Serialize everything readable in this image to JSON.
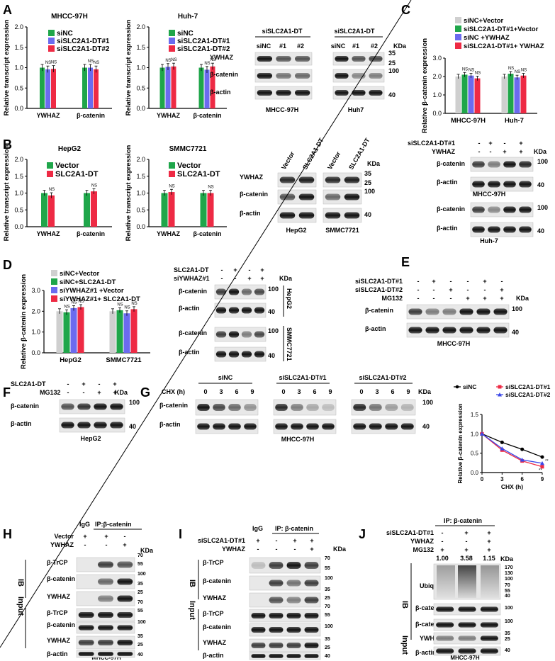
{
  "panel_letters": [
    "A",
    "B",
    "C",
    "D",
    "E",
    "F",
    "G",
    "H",
    "I",
    "J"
  ],
  "common": {
    "y_rel_transcript": "Relative transcript expression",
    "y_rel_bcat": "Relative β-catenin expression",
    "ns": "NS",
    "kda": "KDa",
    "bcat": "β-catenin",
    "bactin": "β-actin",
    "ywhaz": "YWHAZ",
    "btrcp": "β-TrCP",
    "ubiquitin": "Ubiquitin",
    "ib": "IB",
    "input": "Input",
    "mhcc": "MHCC-97H",
    "huh7": "Huh7",
    "huh7_dash": "Huh-7",
    "hepg2": "HepG2",
    "smmc": "SMMC7721",
    "plus": "+",
    "minus": "-"
  },
  "colors": {
    "green": "#1fa64a",
    "blue": "#6b6bef",
    "red": "#ee2a44",
    "grey": "#cfcfcf",
    "cyan": "#38a8e0"
  },
  "charts": {
    "A1": {
      "title": "MHCC-97H",
      "categories": [
        "YWHAZ",
        "β-catenin"
      ],
      "ylim": [
        0,
        2.0
      ],
      "yticks": [
        "0.0",
        "0.5",
        "1.0",
        "1.5",
        "2.0"
      ],
      "series": [
        {
          "name": "siNC",
          "color": "green",
          "values": [
            1.0,
            1.0
          ]
        },
        {
          "name": "siSLC2A1-DT#1",
          "color": "blue",
          "values": [
            0.96,
            1.0
          ]
        },
        {
          "name": "siSLC2A1-DT#2",
          "color": "red",
          "values": [
            0.97,
            0.96
          ]
        }
      ]
    },
    "A2": {
      "title": "Huh-7",
      "categories": [
        "YWHAZ",
        "β-catenin"
      ],
      "ylim": [
        0,
        2.0
      ],
      "yticks": [
        "0.0",
        "0.5",
        "1.0",
        "1.5",
        "2.0"
      ],
      "series": [
        {
          "name": "siNC",
          "color": "green",
          "values": [
            1.0,
            1.0
          ]
        },
        {
          "name": "siSLC2A1-DT#1",
          "color": "blue",
          "values": [
            1.02,
            0.95
          ]
        },
        {
          "name": "siSLC2A1-DT#2",
          "color": "red",
          "values": [
            1.03,
            1.03
          ]
        }
      ]
    },
    "B1": {
      "title": "HepG2",
      "categories": [
        "YWHAZ",
        "β-catenin"
      ],
      "ylim": [
        0,
        2.0
      ],
      "yticks": [
        "0.0",
        "0.5",
        "1.0",
        "1.5",
        "2.0"
      ],
      "series": [
        {
          "name": "Vector",
          "color": "green",
          "values": [
            1.0,
            1.0
          ]
        },
        {
          "name": "SLC2A1-DT",
          "color": "red",
          "values": [
            0.93,
            1.05
          ]
        }
      ]
    },
    "B2": {
      "title": "SMMC7721",
      "categories": [
        "YWHAZ",
        "β-catenin"
      ],
      "ylim": [
        0,
        2.0
      ],
      "yticks": [
        "0.0",
        "0.5",
        "1.0",
        "1.5",
        "2.0"
      ],
      "series": [
        {
          "name": "Vector",
          "color": "green",
          "values": [
            1.0,
            1.0
          ]
        },
        {
          "name": "SLC2A1-DT",
          "color": "red",
          "values": [
            1.03,
            1.0
          ]
        }
      ]
    },
    "C": {
      "categories": [
        "MHCC-97H",
        "Huh-7"
      ],
      "ylim": [
        0,
        3.0
      ],
      "yticks": [
        "0.0",
        "1.0",
        "2.0",
        "3.0"
      ],
      "series": [
        {
          "name": "siNC+Vector",
          "color": "grey",
          "values": [
            2.0,
            2.0
          ]
        },
        {
          "name": "siSLC2A1-DT#1+Vector",
          "color": "green",
          "values": [
            2.1,
            2.15
          ]
        },
        {
          "name": "siNC +YWHAZ",
          "color": "blue",
          "values": [
            2.05,
            1.95
          ]
        },
        {
          "name": "siSLC2A1-DT#1+ YWHAZ",
          "color": "red",
          "values": [
            1.9,
            2.05
          ]
        }
      ]
    },
    "D": {
      "categories": [
        "HepG2",
        "SMMC7721"
      ],
      "ylim": [
        0,
        3.0
      ],
      "yticks": [
        "0.0",
        "1.0",
        "2.0",
        "3.0"
      ],
      "series": [
        {
          "name": "siNC+Vector",
          "color": "grey",
          "values": [
            2.0,
            2.0
          ]
        },
        {
          "name": "siNC+SLC2A1-DT",
          "color": "green",
          "values": [
            1.95,
            2.05
          ]
        },
        {
          "name": "siYWHAZ#1 +Vector",
          "color": "blue",
          "values": [
            2.15,
            1.9
          ]
        },
        {
          "name": "siYWHAZ#1+ SLC2A1-DT",
          "color": "red",
          "values": [
            2.2,
            2.1
          ]
        }
      ]
    },
    "G": {
      "type": "line",
      "ylabel": "Relative β-catenin expression",
      "xlabel": "CHX (h)",
      "x": [
        0,
        3,
        6,
        9
      ],
      "ylim": [
        0,
        1.5
      ],
      "yticks": [
        "0.0",
        "0.5",
        "1.0",
        "1.5"
      ],
      "series": [
        {
          "name": "siNC",
          "color": "#000000",
          "values": [
            1.0,
            0.78,
            0.6,
            0.4
          ]
        },
        {
          "name": "siSLC2A1-DT#1",
          "color": "#ee2a44",
          "values": [
            1.0,
            0.58,
            0.3,
            0.15
          ]
        },
        {
          "name": "siSLC2A1-DT#2",
          "color": "#3b48e8",
          "values": [
            1.0,
            0.62,
            0.33,
            0.24
          ]
        }
      ],
      "marks": [
        "**",
        "**"
      ]
    }
  },
  "blots": {
    "A": {
      "groups": [
        "siSLC2A1-DT",
        "siSLC2A1-DT"
      ],
      "lanes": [
        "siNC",
        "#1",
        "#2",
        "siNC",
        "#1",
        "#2"
      ],
      "rows": [
        "YWHAZ",
        "β-catenin",
        "β-actin"
      ],
      "markers": [
        "35",
        "25",
        "100",
        "40"
      ],
      "cells": [
        "MHCC-97H",
        "Huh7"
      ]
    },
    "B": {
      "lanes": [
        "Vector",
        "SLC2A1-DT",
        "Vector",
        "SLC2A1-DT"
      ],
      "rows": [
        "YWHAZ",
        "β-catenin",
        "β-actin"
      ],
      "markers": [
        "35",
        "25",
        "100",
        "40"
      ],
      "cells": [
        "HepG2",
        "SMMC7721"
      ]
    },
    "C": {
      "conds": [
        {
          "label": "siSLC2A1-DT#1",
          "vals": [
            "-",
            "+",
            "-",
            "+"
          ]
        },
        {
          "label": "YWHAZ",
          "vals": [
            "-",
            "-",
            "+",
            "+"
          ]
        }
      ],
      "cells": [
        "MHCC-97H",
        "Huh-7"
      ],
      "markers": [
        "100",
        "40"
      ]
    },
    "D": {
      "conds": [
        {
          "label": "SLC2A1-DT",
          "vals": [
            "-",
            "+",
            "-",
            "+"
          ]
        },
        {
          "label": "siYWHAZ#1",
          "vals": [
            "-",
            "-",
            "+",
            "+"
          ]
        }
      ],
      "cells": [
        "HepG2",
        "SMMC7721"
      ],
      "markers": [
        "100",
        "40"
      ]
    },
    "E": {
      "conds": [
        {
          "label": "siSLC2A1-DT#1",
          "vals": [
            "-",
            "+",
            "-",
            "-",
            "+",
            "-"
          ]
        },
        {
          "label": "siSLC2A1-DT#2",
          "vals": [
            "-",
            "-",
            "+",
            "-",
            "-",
            "+"
          ]
        },
        {
          "label": "MG132",
          "vals": [
            "-",
            "-",
            "-",
            "+",
            "+",
            "+"
          ]
        }
      ],
      "cell": "MHCC-97H",
      "markers": [
        "100",
        "40"
      ]
    },
    "F": {
      "conds": [
        {
          "label": "SLC2A1-DT",
          "vals": [
            "-",
            "+",
            "-",
            "+"
          ]
        },
        {
          "label": "MG132",
          "vals": [
            "-",
            "-",
            "+",
            "+"
          ]
        }
      ],
      "cell": "HepG2",
      "markers": [
        "100",
        "40"
      ]
    },
    "G": {
      "cond": "CHX (h)",
      "groups": [
        "siNC",
        "siSLC2A1-DT#1",
        "siSLC2A1-DT#2"
      ],
      "times": [
        "0",
        "3",
        "6",
        "9"
      ],
      "cell": "MHCC-97H",
      "markers": [
        "100",
        "40"
      ]
    },
    "H": {
      "igg": "IgG",
      "ip": "IP:β-catenin",
      "conds": [
        {
          "label": "Vector",
          "vals": [
            "+",
            "+",
            "-"
          ]
        },
        {
          "label": "YWHAZ",
          "vals": [
            "-",
            "-",
            "+"
          ]
        }
      ],
      "cell": "MHCC-97H",
      "ib_rows": [
        "β-TrCP",
        "β-catenin",
        "YWHAZ"
      ],
      "in_rows": [
        "β-TrCP",
        "β-catenin",
        "YWHAZ",
        "β-actin"
      ],
      "markers": [
        "70",
        "55",
        "100",
        "35",
        "25",
        "70",
        "55",
        "100",
        "35",
        "25",
        "40"
      ]
    },
    "I": {
      "igg": "IgG",
      "ip": "IP: β-catenin",
      "conds": [
        {
          "label": "siSLC2A1-DT#1",
          "vals": [
            "+",
            "-",
            "+",
            "+"
          ]
        },
        {
          "label": "YWHAZ",
          "vals": [
            "-",
            "-",
            "-",
            "+"
          ]
        }
      ],
      "cell": "MHCC-97H",
      "markers": [
        "70",
        "55",
        "100",
        "35",
        "25",
        "70",
        "55",
        "100",
        "35",
        "25",
        "40"
      ]
    },
    "J": {
      "ip": "IP: β-catenin",
      "conds": [
        {
          "label": "siSLC2A1-DT#1",
          "vals": [
            "-",
            "+",
            "+"
          ]
        },
        {
          "label": "YWHAZ",
          "vals": [
            "-",
            "-",
            "+"
          ]
        },
        {
          "label": "MG132",
          "vals": [
            "+",
            "+",
            "+"
          ]
        }
      ],
      "quant": [
        "1.00",
        "3.58",
        "1.15"
      ],
      "cell": "MHCC-97H",
      "markers": [
        "170",
        "130",
        "100",
        "70",
        "55",
        "40",
        "100",
        "100",
        "35",
        "25",
        "40"
      ]
    }
  }
}
